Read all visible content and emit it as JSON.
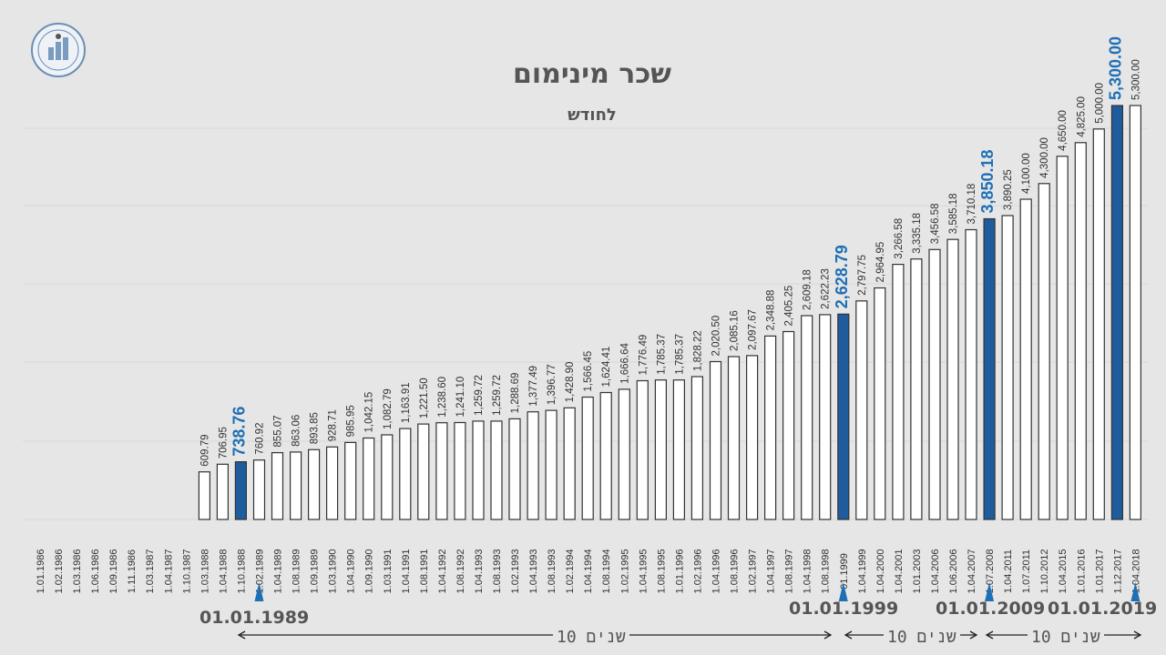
{
  "chart_data": {
    "type": "bar",
    "title": "שכר מינימום",
    "subtitle": "לחודש",
    "ylim": [
      0,
      5500
    ],
    "grid": true,
    "colors": {
      "bar_fill": "#ffffff",
      "bar_stroke": "#333333",
      "highlight_fill": "#1f5c9e",
      "highlight_label": "#1f6fb5",
      "label": "#333333"
    },
    "categories": [
      "1.01.1986",
      "1.02.1986",
      "1.03.1986",
      "1.06.1986",
      "1.09.1986",
      "1.11.1986",
      "1.03.1987",
      "1.04.1987",
      "1.10.1987",
      "1.03.1988",
      "1.04.1988",
      "1.10.1988",
      "1.02.1989",
      "1.04.1989",
      "1.08.1989",
      "1.09.1989",
      "1.03.1990",
      "1.04.1990",
      "1.09.1990",
      "1.03.1991",
      "1.04.1991",
      "1.08.1991",
      "1.04.1992",
      "1.08.1992",
      "1.04.1993",
      "1.08.1993",
      "1.02.1993",
      "1.04.1993",
      "1.08.1993",
      "1.02.1994",
      "1.04.1994",
      "1.08.1994",
      "1.02.1995",
      "1.04.1995",
      "1.08.1995",
      "1.01.1996",
      "1.02.1996",
      "1.04.1996",
      "1.08.1996",
      "1.02.1997",
      "1.04.1997",
      "1.08.1997",
      "1.04.1998",
      "1.08.1998",
      "01.1999",
      "1.04.1999",
      "1.04.2000",
      "1.04.2001",
      "1.01.2003",
      "1.04.2006",
      "1.06.2006",
      "1.04.2007",
      "1.07.2008",
      "1.04.2011",
      "1.07.2011",
      "1.10.2012",
      "1.04.2015",
      "1.01.2016",
      "1.01.2017",
      "1.12.2017",
      "1.04.2018"
    ],
    "values": [
      null,
      null,
      null,
      null,
      null,
      null,
      null,
      null,
      null,
      609.79,
      706.95,
      738.76,
      760.92,
      855.07,
      863.06,
      893.85,
      928.71,
      985.95,
      1042.15,
      1082.79,
      1163.91,
      1221.5,
      1238.6,
      1241.1,
      1259.72,
      1259.72,
      1288.69,
      1377.49,
      1396.77,
      1428.9,
      1566.45,
      1624.41,
      1666.64,
      1776.49,
      1785.37,
      1785.37,
      1828.22,
      2020.5,
      2085.16,
      2097.67,
      2348.88,
      2405.25,
      2609.18,
      2622.23,
      2628.79,
      2797.75,
      2964.95,
      3266.58,
      3335.18,
      3456.58,
      3585.18,
      3710.18,
      3850.18,
      3890.25,
      4100.0,
      4300.0,
      4650.0,
      4825.0,
      5000.0,
      5300.0,
      5300.0
    ],
    "value_labels": [
      "",
      "",
      "",
      "",
      "",
      "",
      "",
      "",
      "",
      "609.79",
      "706.95",
      "738.76",
      "760.92",
      "855.07",
      "863.06",
      "893.85",
      "928.71",
      "985.95",
      "1,042.15",
      "1,082.79",
      "1,163.91",
      "1,221.50",
      "1,238.60",
      "1,241.10",
      "1,259.72",
      "1,259.72",
      "1,288.69",
      "1,377.49",
      "1,396.77",
      "1,428.90",
      "1,566.45",
      "1,624.41",
      "1,666.64",
      "1,776.49",
      "1,785.37",
      "1,785.37",
      "1,828.22",
      "2,020.50",
      "2,085.16",
      "2,097.67",
      "2,348.88",
      "2,405.25",
      "2,609.18",
      "2,622.23",
      "2,628.79",
      "2,797.75",
      "2,964.95",
      "3,266.58",
      "3,335.18",
      "3,456.58",
      "3,585.18",
      "3,710.18",
      "3,850.18",
      "3,890.25",
      "4,100.00",
      "4,300.00",
      "4,650.00",
      "4,825.00",
      "5,000.00",
      "5,300.00",
      "5,300.00"
    ],
    "highlights": [
      11,
      44,
      52,
      59
    ],
    "milestones": [
      {
        "label": "01.01.1989",
        "index": 12
      },
      {
        "label": "01.01.1999",
        "index": 44
      },
      {
        "label": "01.01.2009",
        "index": 52
      },
      {
        "label": "01.01.2019",
        "index": 60
      }
    ],
    "decade_label": "10 שנים"
  }
}
